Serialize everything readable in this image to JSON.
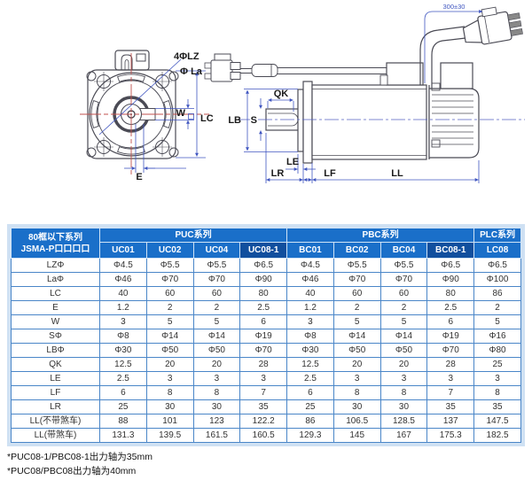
{
  "diagram": {
    "front_view": {
      "bolt_label": "4ΦLZ",
      "pilot_label": "Φ La",
      "dim_w": "W",
      "dim_lc": "LC",
      "dim_e": "E"
    },
    "side_view": {
      "dim_qk": "QK",
      "dim_s": "S",
      "dim_lb": "LB",
      "dim_le": "LE",
      "dim_lr": "LR",
      "dim_lf": "LF",
      "dim_ll": "LL",
      "cable_dim": "300±30"
    }
  },
  "table": {
    "header": {
      "series_col_line1": "80框以下系列",
      "series_col_line2": "JSMA-P口口口口",
      "groups": [
        {
          "label": "PUC系列",
          "span": 4
        },
        {
          "label": "PBC系列",
          "span": 4
        },
        {
          "label": "PLC系列",
          "span": 1
        }
      ],
      "models": [
        "UC01",
        "UC02",
        "UC04",
        "UC08-1",
        "BC01",
        "BC02",
        "BC04",
        "BC08-1",
        "LC08"
      ],
      "models_dark": [
        "UC08-1",
        "BC08-1"
      ]
    },
    "rows": [
      {
        "label": "LZΦ",
        "values": [
          "Φ4.5",
          "Φ5.5",
          "Φ5.5",
          "Φ6.5",
          "Φ4.5",
          "Φ5.5",
          "Φ5.5",
          "Φ6.5",
          "Φ6.5"
        ]
      },
      {
        "label": "LaΦ",
        "values": [
          "Φ46",
          "Φ70",
          "Φ70",
          "Φ90",
          "Φ46",
          "Φ70",
          "Φ70",
          "Φ90",
          "Φ100"
        ]
      },
      {
        "label": "LC",
        "values": [
          "40",
          "60",
          "60",
          "80",
          "40",
          "60",
          "60",
          "80",
          "86"
        ]
      },
      {
        "label": "E",
        "values": [
          "1.2",
          "2",
          "2",
          "2.5",
          "1.2",
          "2",
          "2",
          "2.5",
          "2"
        ]
      },
      {
        "label": "W",
        "values": [
          "3",
          "5",
          "5",
          "6",
          "3",
          "5",
          "5",
          "6",
          "5"
        ]
      },
      {
        "label": "SΦ",
        "values": [
          "Φ8",
          "Φ14",
          "Φ14",
          "Φ19",
          "Φ8",
          "Φ14",
          "Φ14",
          "Φ19",
          "Φ16"
        ]
      },
      {
        "label": "LBΦ",
        "values": [
          "Φ30",
          "Φ50",
          "Φ50",
          "Φ70",
          "Φ30",
          "Φ50",
          "Φ50",
          "Φ70",
          "Φ80"
        ]
      },
      {
        "label": "QK",
        "values": [
          "12.5",
          "20",
          "20",
          "28",
          "12.5",
          "20",
          "20",
          "28",
          "25"
        ]
      },
      {
        "label": "LE",
        "values": [
          "2.5",
          "3",
          "3",
          "3",
          "2.5",
          "3",
          "3",
          "3",
          "3"
        ]
      },
      {
        "label": "LF",
        "values": [
          "6",
          "8",
          "8",
          "7",
          "6",
          "8",
          "8",
          "7",
          "8"
        ]
      },
      {
        "label": "LR",
        "values": [
          "25",
          "30",
          "30",
          "35",
          "25",
          "30",
          "30",
          "35",
          "35"
        ]
      },
      {
        "label": "LL(不带煞车)",
        "values": [
          "88",
          "101",
          "123",
          "122.2",
          "86",
          "106.5",
          "128.5",
          "137",
          "147.5"
        ]
      },
      {
        "label": "LL(带煞车)",
        "values": [
          "131.3",
          "139.5",
          "161.5",
          "160.5",
          "129.3",
          "145",
          "167",
          "175.3",
          "182.5"
        ]
      }
    ]
  },
  "footnotes": [
    "*PUC08-1/PBC08-1出力轴为35mm",
    "*PUC08/PBC08出力轴为40mm"
  ],
  "colors": {
    "header_blue": "#1a6fc9",
    "header_dark_blue": "#114f9e",
    "frame_blue": "#cfe1f3",
    "grid_blue": "#4a86c8",
    "dim_blue": "#4056c0",
    "center_red": "#c0504d",
    "outline_gray": "#4b4b55"
  }
}
